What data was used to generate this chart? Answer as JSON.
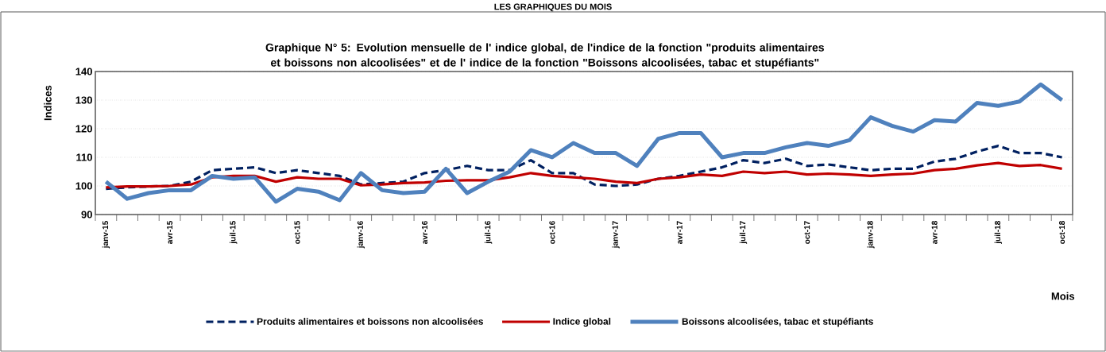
{
  "chart_data": {
    "type": "line",
    "title": "Graphique N° 5: Evolution mensuelle de l' indice global, de l'indice de la fonction \"produits alimentaires et boissons non alcoolisées\" et de l' indice de la fonction \"Boissons alcoolisées, tabac et stupéfiants\"",
    "annotations": [
      "LES GRAPHIQUES DU MOIS"
    ],
    "ylabel": "Indices",
    "xlabel": "Mois",
    "categories": [
      "janv-15",
      null,
      null,
      "avr-15",
      null,
      null,
      "juil-15",
      null,
      null,
      "oct-15",
      null,
      null,
      "janv-16",
      null,
      null,
      "avr-16",
      null,
      null,
      "juil-16",
      null,
      null,
      "oct-16",
      null,
      null,
      "janv-17",
      null,
      null,
      "avr-17",
      null,
      null,
      "juil-17",
      null,
      null,
      "oct-17",
      null,
      null,
      "janv-18",
      null,
      null,
      "avr-18",
      null,
      null,
      "juil-18",
      null,
      null,
      "oct-18"
    ],
    "series": [
      {
        "name": "Produits alimentaires et boissons non alcoolisées",
        "color": "#002060",
        "line_style": "dashed",
        "values": [
          99,
          99.5,
          99.8,
          100,
          101.5,
          105.5,
          106,
          106.5,
          104.5,
          105.5,
          104.5,
          103.5,
          100.5,
          101,
          101.5,
          104.5,
          105.5,
          107,
          105.5,
          105.5,
          109,
          104.5,
          104.5,
          100.5,
          100,
          100.5,
          102.5,
          103.5,
          105,
          106.5,
          109,
          108,
          109.5,
          107,
          107.5,
          106.5,
          105.5,
          106,
          106,
          108.5,
          109.5,
          112,
          114,
          111.5,
          111.5,
          110
        ]
      },
      {
        "name": "Indice global",
        "color": "#c00000",
        "line_style": "solid",
        "values": [
          99.5,
          99.8,
          99.8,
          100,
          100.5,
          103,
          103.5,
          103.5,
          101.5,
          103,
          102.5,
          102.5,
          100.2,
          100.5,
          101,
          101.2,
          101.8,
          102,
          102,
          103,
          104.5,
          103.5,
          103,
          102.5,
          101.5,
          101,
          102.5,
          103,
          104,
          103.5,
          105,
          104.5,
          105,
          104,
          104.3,
          104,
          103.5,
          104,
          104.3,
          105.5,
          106,
          107.2,
          108,
          107,
          107.3,
          106
        ]
      },
      {
        "name": "Boissons alcoolisées, tabac et stupéfiants",
        "color": "#4f81bd",
        "line_style": "solid",
        "values": [
          101.5,
          95.5,
          97.5,
          98.5,
          98.5,
          103.5,
          102.5,
          103,
          94.5,
          99,
          98,
          95,
          104.5,
          98.5,
          97.5,
          98,
          106,
          97.5,
          101.5,
          105,
          112.5,
          110,
          115,
          111.5,
          111.5,
          107,
          116.5,
          118.5,
          118.5,
          110,
          111.5,
          111.5,
          113.5,
          115,
          114,
          116,
          124,
          121,
          119,
          123,
          122.5,
          129,
          128,
          129.5,
          135.5,
          130
        ]
      }
    ],
    "ylim": [
      90,
      140
    ],
    "yticks": [
      90,
      100,
      110,
      120,
      130,
      140
    ],
    "grid": "y",
    "legend": "bottom"
  }
}
